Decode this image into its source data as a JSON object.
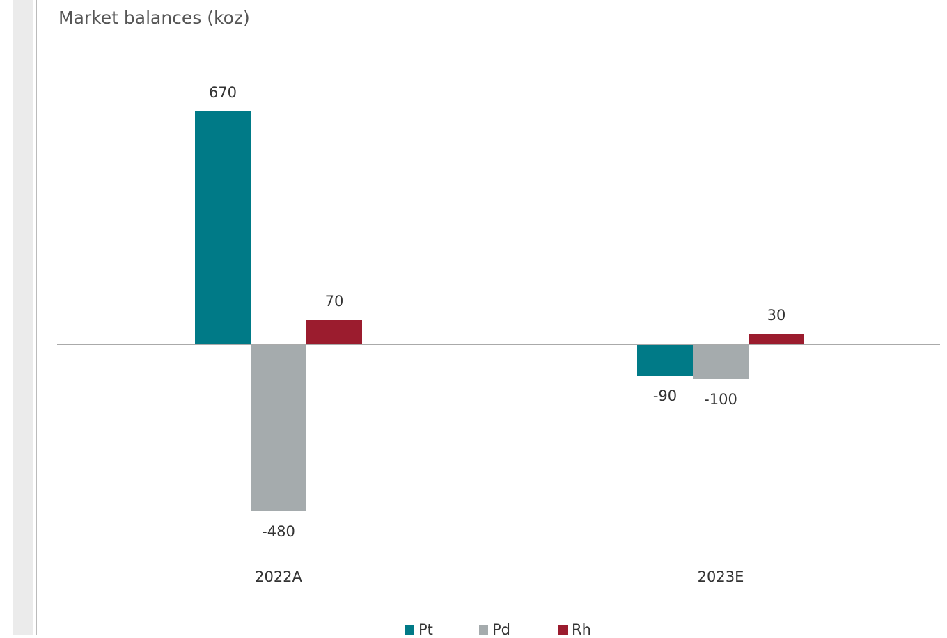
{
  "chart_data": {
    "type": "bar",
    "title": "Market balances (koz)",
    "categories": [
      "2022A",
      "2023E"
    ],
    "series": [
      {
        "name": "Pt",
        "color": "#007a87",
        "values": [
          670,
          -90
        ]
      },
      {
        "name": "Pd",
        "color": "#a5abad",
        "values": [
          -480,
          -100
        ]
      },
      {
        "name": "Rh",
        "color": "#9b1c2e",
        "values": [
          70,
          30
        ]
      }
    ]
  }
}
